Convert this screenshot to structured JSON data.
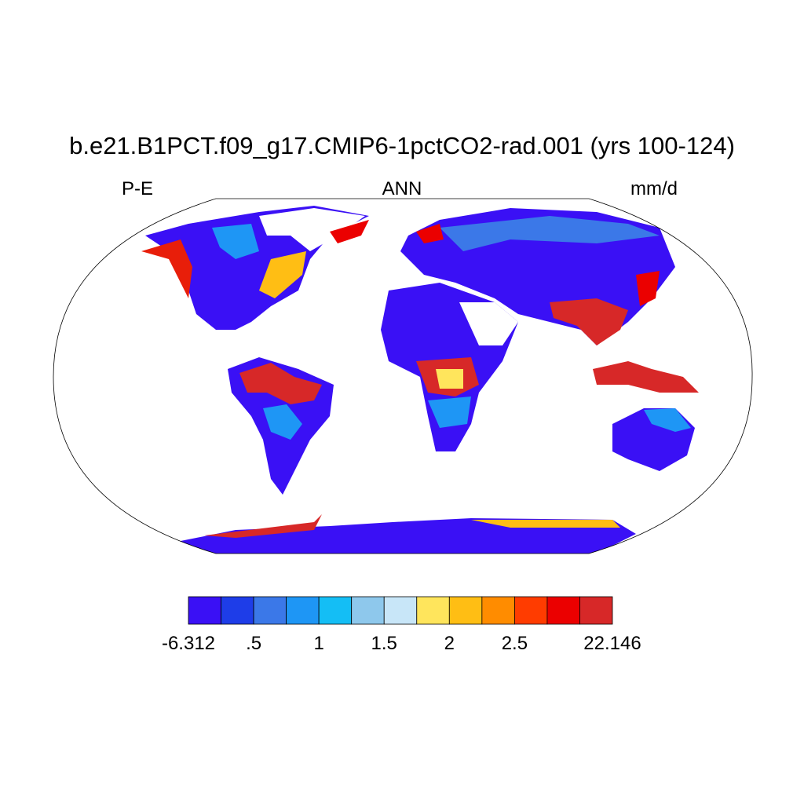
{
  "title": "b.e21.B1PCT.f09_g17.CMIP6-1pctCO2-rad.001 (yrs 100-124)",
  "left_label": "P-E",
  "center_label": "ANN",
  "right_label": "mm/d",
  "colorbar": {
    "colors": [
      "#3a10f5",
      "#1e3de8",
      "#3b78e8",
      "#1e96f5",
      "#14bef5",
      "#8ec8ec",
      "#c8e6f8",
      "#ffe55c",
      "#ffbe14",
      "#ff8c00",
      "#ff3c00",
      "#eb0000",
      "#d72828"
    ],
    "labels": [
      "-6.312",
      ".5",
      "1",
      "1.5",
      "2",
      "2.5",
      "22.146"
    ]
  }
}
